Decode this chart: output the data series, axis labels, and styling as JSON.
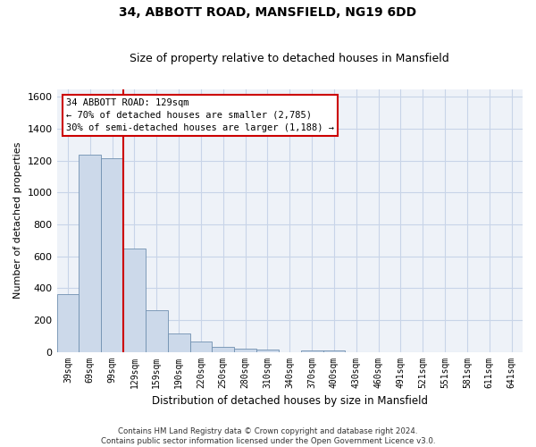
{
  "title": "34, ABBOTT ROAD, MANSFIELD, NG19 6DD",
  "subtitle": "Size of property relative to detached houses in Mansfield",
  "xlabel": "Distribution of detached houses by size in Mansfield",
  "ylabel": "Number of detached properties",
  "categories": [
    "39sqm",
    "69sqm",
    "99sqm",
    "129sqm",
    "159sqm",
    "190sqm",
    "220sqm",
    "250sqm",
    "280sqm",
    "310sqm",
    "340sqm",
    "370sqm",
    "400sqm",
    "430sqm",
    "460sqm",
    "491sqm",
    "521sqm",
    "551sqm",
    "581sqm",
    "611sqm",
    "641sqm"
  ],
  "values": [
    360,
    1240,
    1215,
    650,
    260,
    115,
    65,
    30,
    20,
    12,
    0,
    10,
    10,
    0,
    0,
    0,
    0,
    0,
    0,
    0,
    0
  ],
  "bar_color": "#ccd9ea",
  "bar_edge_color": "#7090b0",
  "highlight_index": 3,
  "highlight_line_color": "#cc0000",
  "ylim": [
    0,
    1650
  ],
  "yticks": [
    0,
    200,
    400,
    600,
    800,
    1000,
    1200,
    1400,
    1600
  ],
  "annotation_text": "34 ABBOTT ROAD: 129sqm\n← 70% of detached houses are smaller (2,785)\n30% of semi-detached houses are larger (1,188) →",
  "annotation_box_color": "#ffffff",
  "annotation_box_edge_color": "#cc0000",
  "footer_text": "Contains HM Land Registry data © Crown copyright and database right 2024.\nContains public sector information licensed under the Open Government Licence v3.0.",
  "grid_color": "#c8d4e8",
  "background_color": "#eef2f8"
}
